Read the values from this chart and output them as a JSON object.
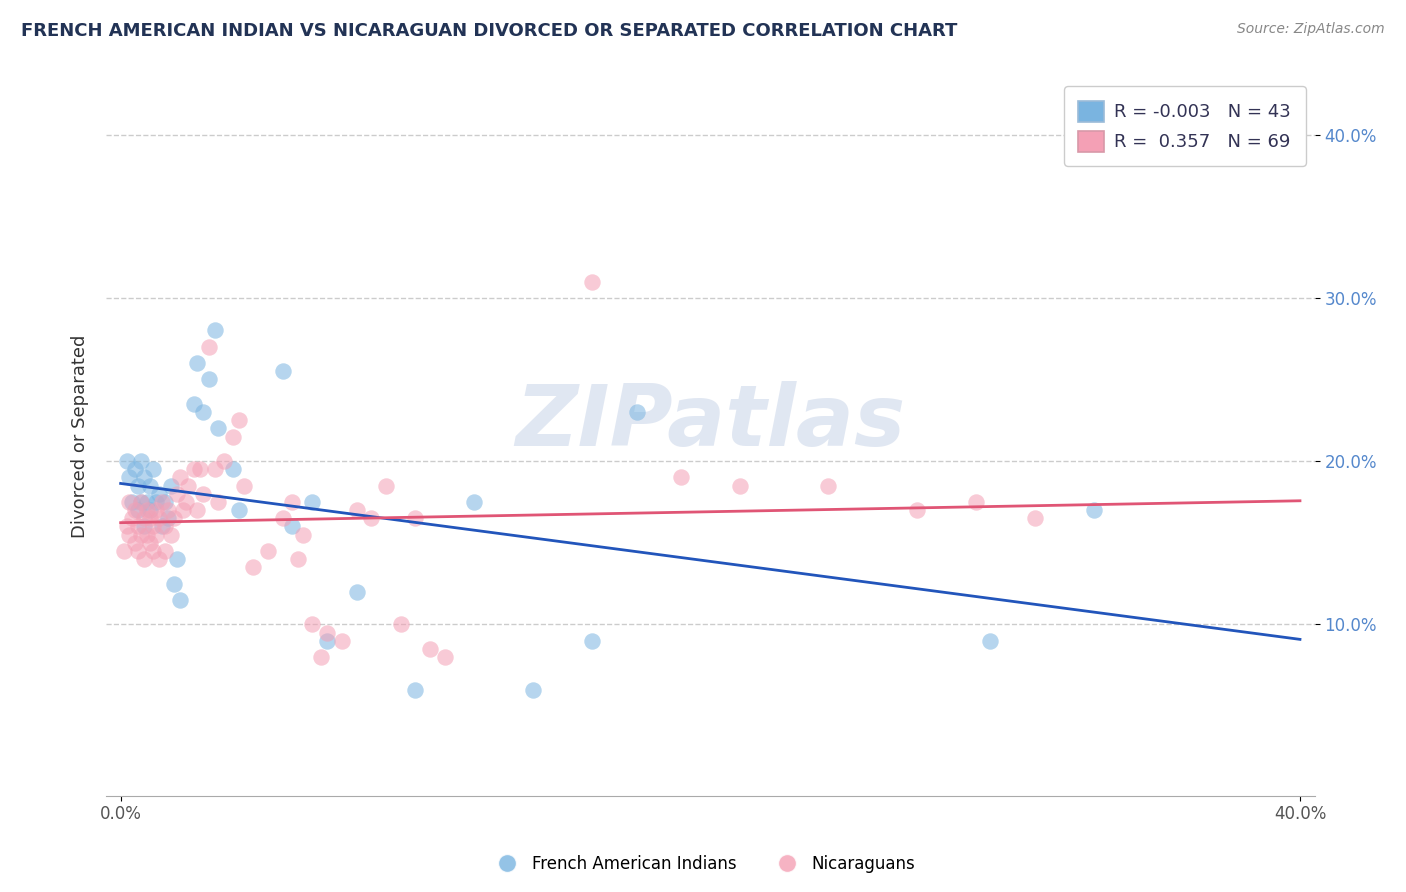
{
  "title": "FRENCH AMERICAN INDIAN VS NICARAGUAN DIVORCED OR SEPARATED CORRELATION CHART",
  "source_text": "Source: ZipAtlas.com",
  "ylabel": "Divorced or Separated",
  "xlim": [
    -0.005,
    0.405
  ],
  "ylim": [
    -0.005,
    0.435
  ],
  "yticks": [
    0.1,
    0.2,
    0.3,
    0.4
  ],
  "ytick_labels": [
    "10.0%",
    "20.0%",
    "30.0%",
    "40.0%"
  ],
  "xticks": [
    0.0,
    0.4
  ],
  "xtick_labels": [
    "0.0%",
    "40.0%"
  ],
  "watermark": "ZIPatlas",
  "watermark_color": "#c8d4e8",
  "blue_color": "#7ab4e0",
  "pink_color": "#f4a0b5",
  "blue_line_color": "#2255bb",
  "pink_line_color": "#e05575",
  "background_color": "#ffffff",
  "grid_color": "#cccccc",
  "title_color": "#223355",
  "blue_label": "French American Indians",
  "pink_label": "Nicaraguans",
  "blue_R": "-0.003",
  "blue_N": "43",
  "pink_R": "0.357",
  "pink_N": "69",
  "blue_scatter": [
    [
      0.002,
      0.2
    ],
    [
      0.003,
      0.19
    ],
    [
      0.004,
      0.175
    ],
    [
      0.005,
      0.195
    ],
    [
      0.006,
      0.185
    ],
    [
      0.006,
      0.17
    ],
    [
      0.007,
      0.2
    ],
    [
      0.007,
      0.175
    ],
    [
      0.008,
      0.19
    ],
    [
      0.008,
      0.16
    ],
    [
      0.009,
      0.175
    ],
    [
      0.01,
      0.185
    ],
    [
      0.01,
      0.17
    ],
    [
      0.011,
      0.195
    ],
    [
      0.012,
      0.175
    ],
    [
      0.013,
      0.18
    ],
    [
      0.014,
      0.16
    ],
    [
      0.015,
      0.175
    ],
    [
      0.016,
      0.165
    ],
    [
      0.017,
      0.185
    ],
    [
      0.018,
      0.125
    ],
    [
      0.019,
      0.14
    ],
    [
      0.02,
      0.115
    ],
    [
      0.025,
      0.235
    ],
    [
      0.026,
      0.26
    ],
    [
      0.028,
      0.23
    ],
    [
      0.03,
      0.25
    ],
    [
      0.032,
      0.28
    ],
    [
      0.033,
      0.22
    ],
    [
      0.038,
      0.195
    ],
    [
      0.04,
      0.17
    ],
    [
      0.055,
      0.255
    ],
    [
      0.058,
      0.16
    ],
    [
      0.065,
      0.175
    ],
    [
      0.07,
      0.09
    ],
    [
      0.08,
      0.12
    ],
    [
      0.1,
      0.06
    ],
    [
      0.12,
      0.175
    ],
    [
      0.14,
      0.06
    ],
    [
      0.16,
      0.09
    ],
    [
      0.175,
      0.23
    ],
    [
      0.295,
      0.09
    ],
    [
      0.33,
      0.17
    ]
  ],
  "pink_scatter": [
    [
      0.001,
      0.145
    ],
    [
      0.002,
      0.16
    ],
    [
      0.003,
      0.175
    ],
    [
      0.003,
      0.155
    ],
    [
      0.004,
      0.165
    ],
    [
      0.005,
      0.15
    ],
    [
      0.005,
      0.17
    ],
    [
      0.006,
      0.16
    ],
    [
      0.006,
      0.145
    ],
    [
      0.007,
      0.175
    ],
    [
      0.007,
      0.155
    ],
    [
      0.008,
      0.165
    ],
    [
      0.008,
      0.14
    ],
    [
      0.009,
      0.17
    ],
    [
      0.009,
      0.155
    ],
    [
      0.01,
      0.165
    ],
    [
      0.01,
      0.15
    ],
    [
      0.011,
      0.16
    ],
    [
      0.011,
      0.145
    ],
    [
      0.012,
      0.17
    ],
    [
      0.012,
      0.155
    ],
    [
      0.013,
      0.165
    ],
    [
      0.013,
      0.14
    ],
    [
      0.014,
      0.175
    ],
    [
      0.015,
      0.16
    ],
    [
      0.015,
      0.145
    ],
    [
      0.016,
      0.17
    ],
    [
      0.017,
      0.155
    ],
    [
      0.018,
      0.165
    ],
    [
      0.019,
      0.18
    ],
    [
      0.02,
      0.19
    ],
    [
      0.021,
      0.17
    ],
    [
      0.022,
      0.175
    ],
    [
      0.023,
      0.185
    ],
    [
      0.025,
      0.195
    ],
    [
      0.026,
      0.17
    ],
    [
      0.027,
      0.195
    ],
    [
      0.028,
      0.18
    ],
    [
      0.03,
      0.27
    ],
    [
      0.032,
      0.195
    ],
    [
      0.033,
      0.175
    ],
    [
      0.035,
      0.2
    ],
    [
      0.038,
      0.215
    ],
    [
      0.04,
      0.225
    ],
    [
      0.042,
      0.185
    ],
    [
      0.045,
      0.135
    ],
    [
      0.05,
      0.145
    ],
    [
      0.055,
      0.165
    ],
    [
      0.058,
      0.175
    ],
    [
      0.06,
      0.14
    ],
    [
      0.062,
      0.155
    ],
    [
      0.065,
      0.1
    ],
    [
      0.068,
      0.08
    ],
    [
      0.07,
      0.095
    ],
    [
      0.075,
      0.09
    ],
    [
      0.08,
      0.17
    ],
    [
      0.085,
      0.165
    ],
    [
      0.09,
      0.185
    ],
    [
      0.095,
      0.1
    ],
    [
      0.1,
      0.165
    ],
    [
      0.105,
      0.085
    ],
    [
      0.11,
      0.08
    ],
    [
      0.16,
      0.31
    ],
    [
      0.19,
      0.19
    ],
    [
      0.21,
      0.185
    ],
    [
      0.24,
      0.185
    ],
    [
      0.27,
      0.17
    ],
    [
      0.29,
      0.175
    ],
    [
      0.31,
      0.165
    ]
  ]
}
